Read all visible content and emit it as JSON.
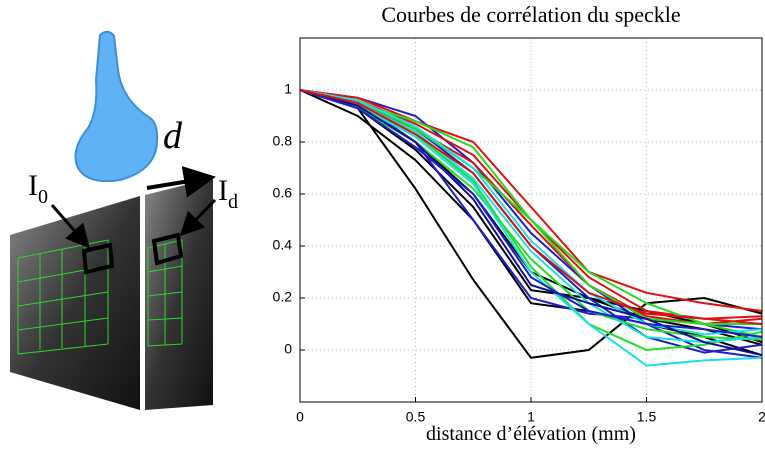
{
  "illustration": {
    "probe_label": "d",
    "image_labels": [
      {
        "main": "I",
        "sub": "0"
      },
      {
        "main": "I",
        "sub": "d"
      }
    ]
  },
  "chart_data": {
    "type": "line",
    "title": "Courbes de corrélation du speckle",
    "x_label": "distance d’élévation (mm)",
    "x": [
      0,
      0.25,
      0.5,
      0.75,
      1,
      1.25,
      1.5,
      1.75,
      2
    ],
    "xlim": [
      0,
      2
    ],
    "xticks": [
      0,
      0.5,
      1,
      1.5,
      2
    ],
    "ylim": [
      -0.2,
      1.2
    ],
    "yticks": [
      0,
      0.2,
      0.4,
      0.6,
      0.8,
      1
    ],
    "grid": true,
    "series": [
      {
        "color": "#000000",
        "values": [
          1,
          0.93,
          0.62,
          0.27,
          -0.03,
          0,
          0.18,
          0.2,
          0.14
        ]
      },
      {
        "color": "#000000",
        "values": [
          1,
          0.9,
          0.73,
          0.5,
          0.18,
          0.15,
          0.1,
          0.05,
          -0.02
        ]
      },
      {
        "color": "#000000",
        "values": [
          1,
          0.93,
          0.77,
          0.55,
          0.23,
          0.2,
          0.15,
          0.1,
          0.03
        ]
      },
      {
        "color": "#000000",
        "values": [
          1,
          0.95,
          0.8,
          0.6,
          0.3,
          0.2,
          0.12,
          0.08,
          0.02
        ]
      },
      {
        "color": "#1f1fd0",
        "values": [
          1,
          0.95,
          0.8,
          0.5,
          0.2,
          0.14,
          0.12,
          0.1,
          0.08
        ]
      },
      {
        "color": "#1f1fd0",
        "values": [
          1,
          0.97,
          0.9,
          0.72,
          0.45,
          0.25,
          0.1,
          0,
          -0.03
        ]
      },
      {
        "color": "#1f1fd0",
        "values": [
          1,
          0.96,
          0.85,
          0.68,
          0.4,
          0.2,
          0.05,
          -0.01,
          0.02
        ]
      },
      {
        "color": "#e01010",
        "values": [
          1,
          0.97,
          0.88,
          0.8,
          0.55,
          0.3,
          0.22,
          0.18,
          0.15
        ]
      },
      {
        "color": "#e01010",
        "values": [
          1,
          0.96,
          0.87,
          0.75,
          0.5,
          0.28,
          0.15,
          0.12,
          0.13
        ]
      },
      {
        "color": "#e01010",
        "values": [
          1,
          0.95,
          0.85,
          0.72,
          0.48,
          0.25,
          0.13,
          0.1,
          0.12
        ]
      },
      {
        "color": "#22dd22",
        "values": [
          1,
          0.96,
          0.85,
          0.7,
          0.5,
          0.25,
          0.12,
          0.1,
          0.05
        ]
      },
      {
        "color": "#22dd22",
        "values": [
          1,
          0.94,
          0.83,
          0.65,
          0.32,
          0.1,
          0,
          0.02,
          0.07
        ]
      },
      {
        "color": "#22dd22",
        "values": [
          1,
          0.95,
          0.88,
          0.78,
          0.5,
          0.3,
          0.18,
          0.1,
          0.1
        ]
      },
      {
        "color": "#22dd22",
        "values": [
          1,
          0.93,
          0.8,
          0.62,
          0.35,
          0.15,
          0.08,
          0.05,
          0.04
        ]
      },
      {
        "color": "#19e0e8",
        "values": [
          1,
          0.94,
          0.82,
          0.64,
          0.3,
          0.1,
          -0.06,
          -0.04,
          -0.03
        ]
      },
      {
        "color": "#19e0e8",
        "values": [
          1,
          0.95,
          0.84,
          0.66,
          0.38,
          0.18,
          0.05,
          0.03,
          0.05
        ]
      },
      {
        "color": "#19e0e8",
        "values": [
          1,
          0.96,
          0.86,
          0.7,
          0.42,
          0.22,
          0.1,
          0.06,
          0.08
        ]
      },
      {
        "color": "#101090",
        "values": [
          1,
          0.94,
          0.8,
          0.58,
          0.25,
          0.18,
          0.12,
          0.03,
          -0.02
        ]
      },
      {
        "color": "#1f1fd0",
        "values": [
          1,
          0.93,
          0.78,
          0.6,
          0.28,
          0.15,
          0.1,
          0.08,
          0.05
        ]
      },
      {
        "color": "#e01010",
        "values": [
          1,
          0.95,
          0.83,
          0.68,
          0.4,
          0.22,
          0.14,
          0.12,
          0.1
        ]
      }
    ]
  }
}
